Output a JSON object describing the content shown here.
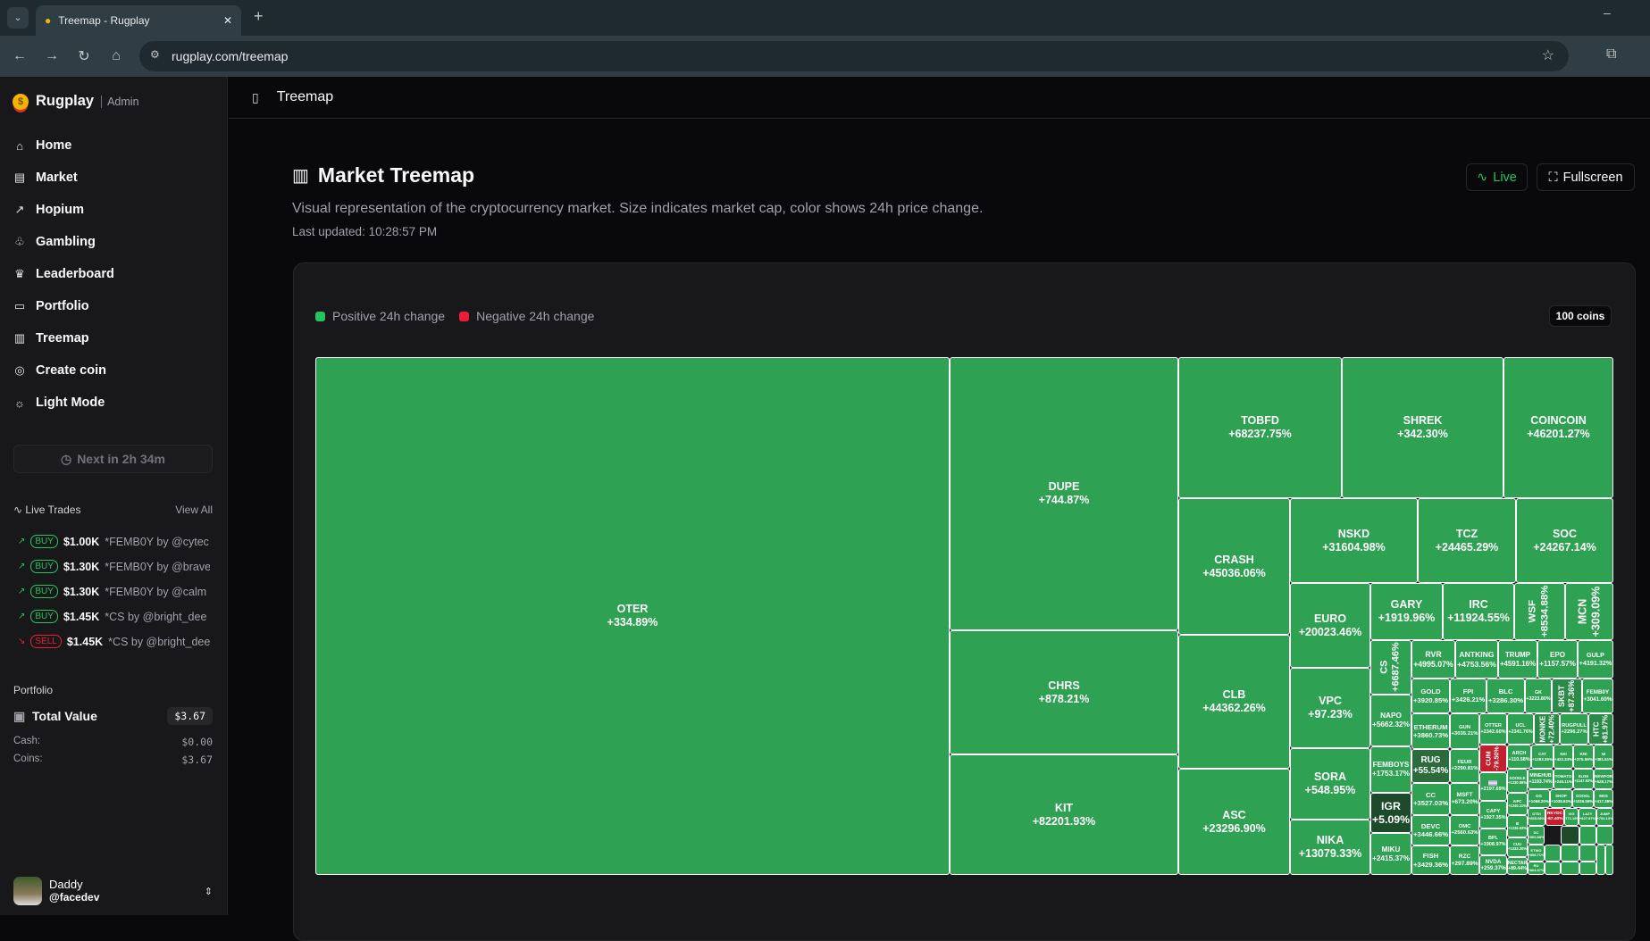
{
  "browser": {
    "tab_title": "Treemap - Rugplay",
    "url": "rugplay.com/treemap"
  },
  "sidebar": {
    "brand": "Rugplay",
    "role": "Admin",
    "items": [
      {
        "label": "Home",
        "icon": "home-icon",
        "glyph": "⌂"
      },
      {
        "label": "Market",
        "icon": "store-icon",
        "glyph": "▤"
      },
      {
        "label": "Hopium",
        "icon": "trend-icon",
        "glyph": "↗"
      },
      {
        "label": "Gambling",
        "icon": "piggy-bank-icon",
        "glyph": "♧"
      },
      {
        "label": "Leaderboard",
        "icon": "trophy-icon",
        "glyph": "♛"
      },
      {
        "label": "Portfolio",
        "icon": "briefcase-icon",
        "glyph": "▭"
      },
      {
        "label": "Treemap",
        "icon": "chart-icon",
        "glyph": "▥"
      },
      {
        "label": "Create coin",
        "icon": "coins-icon",
        "glyph": "◎"
      },
      {
        "label": "Light Mode",
        "icon": "sun-icon",
        "glyph": "☼"
      }
    ],
    "next_button": "Next in 2h 34m",
    "live_trades": {
      "title": "Live Trades",
      "view_all": "View All",
      "trades": [
        {
          "type": "BUY",
          "amount": "$1.00K",
          "detail": "*FEMB0Y by @cytec"
        },
        {
          "type": "BUY",
          "amount": "$1.30K",
          "detail": "*FEMB0Y by @brave"
        },
        {
          "type": "BUY",
          "amount": "$1.30K",
          "detail": "*FEMB0Y by @calm"
        },
        {
          "type": "BUY",
          "amount": "$1.45K",
          "detail": "*CS by @bright_dee"
        },
        {
          "type": "SELL",
          "amount": "$1.45K",
          "detail": "*CS by @bright_dee"
        }
      ]
    },
    "portfolio": {
      "title": "Portfolio",
      "total_label": "Total Value",
      "total": "$3.67",
      "cash_label": "Cash:",
      "cash": "$0.00",
      "coins_label": "Coins:",
      "coins": "$3.67"
    },
    "user": {
      "name": "Daddy",
      "handle": "@facedev"
    }
  },
  "header": {
    "title": "Treemap"
  },
  "page": {
    "title": "Market Treemap",
    "description": "Visual representation of the cryptocurrency market. Size indicates market cap, color shows 24h price change.",
    "last_updated": "Last updated: 10:28:57 PM",
    "live_label": "Live",
    "fullscreen_label": "Fullscreen",
    "legend_positive": "Positive 24h change",
    "legend_negative": "Negative 24h change",
    "coin_count": "100 coins",
    "colors": {
      "positive": "#2ea152",
      "negative": "#c3202f",
      "accent": "#22c55e"
    }
  },
  "chart_data": {
    "type": "treemap",
    "cells": [
      {
        "symbol": "OTER",
        "change": "+334.89%",
        "color": "#2ea152"
      },
      {
        "symbol": "DUPE",
        "change": "+744.87%",
        "color": "#2ea152"
      },
      {
        "symbol": "CHRS",
        "change": "+878.21%",
        "color": "#2ea152"
      },
      {
        "symbol": "KIT",
        "change": "+82201.93%",
        "color": "#2ea152"
      },
      {
        "symbol": "TOBFD",
        "change": "+68237.75%",
        "color": "#2ea152"
      },
      {
        "symbol": "SHREK",
        "change": "+342.30%",
        "color": "#2ea152"
      },
      {
        "symbol": "COINCOIN",
        "change": "+46201.27%",
        "color": "#2ea152"
      },
      {
        "symbol": "CRASH",
        "change": "+45036.06%",
        "color": "#2ea152"
      },
      {
        "symbol": "NSKD",
        "change": "+31604.98%",
        "color": "#2ea152"
      },
      {
        "symbol": "TCZ",
        "change": "+24465.29%",
        "color": "#2ea152"
      },
      {
        "symbol": "SOC",
        "change": "+24267.14%",
        "color": "#2ea152"
      },
      {
        "symbol": "CLB",
        "change": "+44362.26%",
        "color": "#2ea152"
      },
      {
        "symbol": "ASC",
        "change": "+23296.90%",
        "color": "#2ea152"
      },
      {
        "symbol": "EURO",
        "change": "+20023.46%",
        "color": "#2ea152"
      },
      {
        "symbol": "VPC",
        "change": "+97.23%",
        "color": "#2ea152"
      },
      {
        "symbol": "SORA",
        "change": "+548.95%",
        "color": "#2ea152"
      },
      {
        "symbol": "NIKA",
        "change": "+13079.33%",
        "color": "#2ea152"
      },
      {
        "symbol": "GARY",
        "change": "+1919.96%",
        "color": "#2ea152"
      },
      {
        "symbol": "IRC",
        "change": "+11924.55%",
        "color": "#2ea152"
      },
      {
        "symbol": "WSF",
        "change": "+8534.88%",
        "color": "#2ea152"
      },
      {
        "symbol": "MCN",
        "change": "+309.09%",
        "color": "#2ea152"
      },
      {
        "symbol": "CS",
        "change": "+6687.46%",
        "color": "#2ea152"
      },
      {
        "symbol": "NAPO",
        "change": "+5662.32%",
        "color": "#2ea152"
      },
      {
        "symbol": "FEMBOYS",
        "change": "+1753.17%",
        "color": "#2ea152"
      },
      {
        "symbol": "IGR",
        "change": "+5.09%",
        "color": "#1e4a2c"
      },
      {
        "symbol": "MIKU",
        "change": "+2415.37%",
        "color": "#2ea152"
      },
      {
        "symbol": "RVR",
        "change": "+4995.07%",
        "color": "#2ea152"
      },
      {
        "symbol": "ANTKING",
        "change": "+4753.56%",
        "color": "#2ea152"
      },
      {
        "symbol": "TRUMP",
        "change": "+4591.16%",
        "color": "#2ea152"
      },
      {
        "symbol": "EPO",
        "change": "+1157.57%",
        "color": "#2ea152"
      },
      {
        "symbol": "GULP",
        "change": "+4191.32%",
        "color": "#2ea152"
      },
      {
        "symbol": "GOLD",
        "change": "+3920.85%",
        "color": "#2ea152"
      },
      {
        "symbol": "FPI",
        "change": "+3426.21%",
        "color": "#2ea152"
      },
      {
        "symbol": "BLC",
        "change": "+3286.30%",
        "color": "#2ea152"
      },
      {
        "symbol": "GK",
        "change": "+3223.80%",
        "color": "#2ea152"
      },
      {
        "symbol": "SKBT",
        "change": "+87.36%",
        "color": "#2a8a48"
      },
      {
        "symbol": "FEMB0Y",
        "change": "+3041.60%",
        "color": "#2ea152"
      },
      {
        "symbol": "ETHERUM",
        "change": "+3860.73%",
        "color": "#2ea152"
      },
      {
        "symbol": "GUN",
        "change": "+3035.21%",
        "color": "#2ea152"
      },
      {
        "symbol": "OTTER",
        "change": "+2342.60%",
        "color": "#2ea152"
      },
      {
        "symbol": "UCL",
        "change": "+2341.76%",
        "color": "#2ea152"
      },
      {
        "symbol": "MONKE",
        "change": "+72.40%",
        "color": "#2a8a48"
      },
      {
        "symbol": "RUGPULL",
        "change": "+2296.27%",
        "color": "#2ea152"
      },
      {
        "symbol": "HTC",
        "change": "+81.97%",
        "color": "#2a8a48"
      },
      {
        "symbol": "RUG",
        "change": "+55.54%",
        "color": "#2b6b3c"
      },
      {
        "symbol": "FEUR",
        "change": "+2290.81%",
        "color": "#2ea152"
      },
      {
        "symbol": "CC",
        "change": "+3527.03%",
        "color": "#2ea152"
      },
      {
        "symbol": "MSFT",
        "change": "+673.20%",
        "color": "#2ea152"
      },
      {
        "symbol": "DEVC",
        "change": "+3446.66%",
        "color": "#2ea152"
      },
      {
        "symbol": "OMC",
        "change": "+2560.63%",
        "color": "#2ea152"
      },
      {
        "symbol": "FISH",
        "change": "+3429.36%",
        "color": "#2ea152"
      },
      {
        "symbol": "RZC",
        "change": "+297.89%",
        "color": "#2ea152"
      },
      {
        "symbol": "CUM",
        "change": "-79.50%",
        "color": "#c3202f"
      },
      {
        "symbol": "",
        "change": "+2197.69%",
        "color": "#2ea152"
      },
      {
        "symbol": "CAPY",
        "change": "+1927.35%",
        "color": "#2ea152"
      },
      {
        "symbol": "BPL",
        "change": "+1908.97%",
        "color": "#2ea152"
      },
      {
        "symbol": "NVDA",
        "change": "+259.37%",
        "color": "#2ea152"
      },
      {
        "symbol": "ARCH",
        "change": "+110.58%",
        "color": "#2ea152"
      },
      {
        "symbol": "CAT",
        "change": "+1283.39%",
        "color": "#2ea152"
      },
      {
        "symbol": "NXI",
        "change": "+422.34%",
        "color": "#2ea152"
      },
      {
        "symbol": "KNI",
        "change": "+375.59%",
        "color": "#2ea152"
      },
      {
        "symbol": "NI",
        "change": "+381.51%",
        "color": "#2ea152"
      },
      {
        "symbol": "GOOGLE",
        "change": "+1230.89%",
        "color": "#2ea152"
      },
      {
        "symbol": "MINEHUB",
        "change": "+1193.74%",
        "color": "#2ea152"
      },
      {
        "symbol": "TOMATO",
        "change": "+240.11%",
        "color": "#2ea152"
      },
      {
        "symbol": "ELON",
        "change": "+1147.92%",
        "color": "#2ea152"
      },
      {
        "symbol": "NEWFOR",
        "change": "+528.17%",
        "color": "#2ea152"
      },
      {
        "symbol": "AIPC",
        "change": "+1240.11%",
        "color": "#2ea152"
      },
      {
        "symbol": "GG",
        "change": "+1068.20%",
        "color": "#2ea152"
      },
      {
        "symbol": "SHOP",
        "change": "+1038.63%",
        "color": "#2ea152"
      },
      {
        "symbol": "GOOGL",
        "change": "+1026.59%",
        "color": "#2ea152"
      },
      {
        "symbol": "MSS",
        "change": "+417.38%",
        "color": "#2ea152"
      },
      {
        "symbol": "DTDI",
        "change": "+855.08%",
        "color": "#2ea152"
      },
      {
        "symbol": "RKYDC",
        "change": "-67.40%",
        "color": "#c3202f"
      },
      {
        "symbol": "VIG",
        "change": "+771.19%",
        "color": "#2ea152"
      },
      {
        "symbol": "LAZY",
        "change": "+627.67%",
        "color": "#2ea152"
      },
      {
        "symbol": "JUMP",
        "change": "+794.13%",
        "color": "#2ea152"
      },
      {
        "symbol": "III",
        "change": "+1236.63%",
        "color": "#2ea152"
      },
      {
        "symbol": "CUU",
        "change": "+1233.20%",
        "color": "#2ea152"
      },
      {
        "symbol": "NECTAR",
        "change": "+89.44%",
        "color": "#2ea152"
      },
      {
        "symbol": "DC",
        "change": "+800.88%",
        "color": "#2ea152"
      },
      {
        "symbol": "ETWO",
        "change": "+898.71%",
        "color": "#2ea152"
      },
      {
        "symbol": "RU",
        "change": "+804.37%",
        "color": "#2ea152"
      }
    ]
  }
}
